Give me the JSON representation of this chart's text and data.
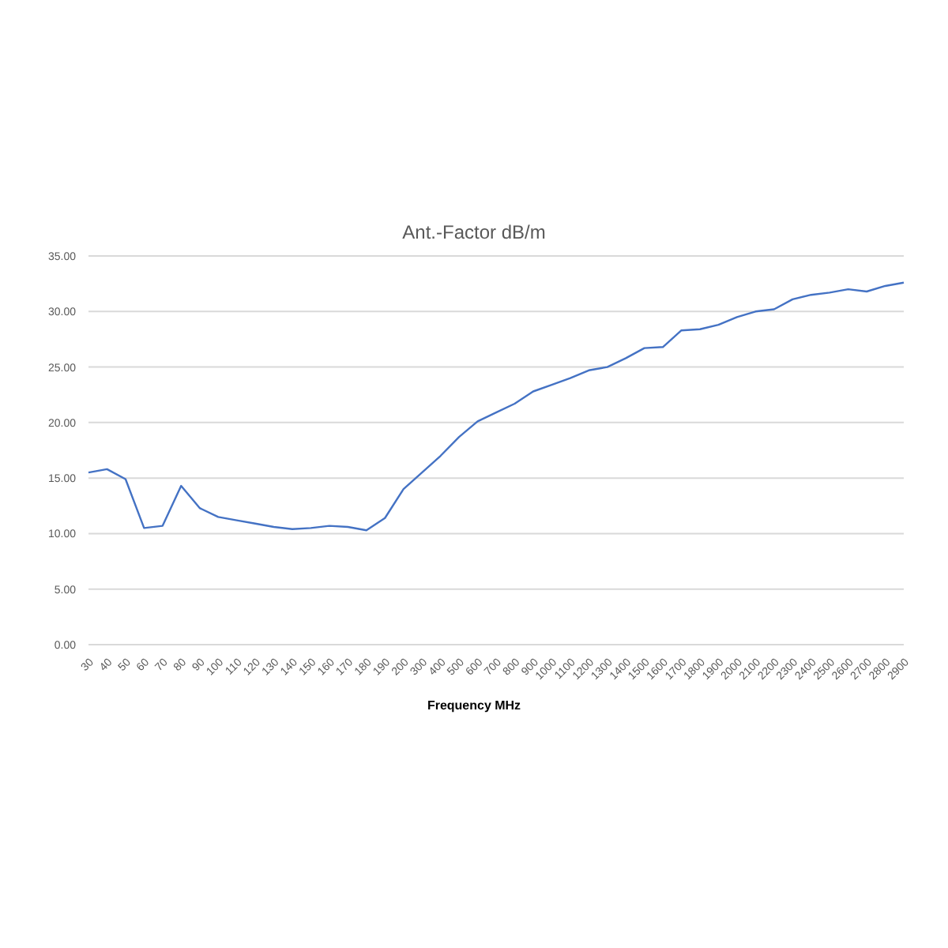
{
  "chart_data": {
    "type": "line",
    "title": "Ant.-Factor dB/m",
    "xlabel": "Frequency MHz",
    "categories": [
      "30",
      "40",
      "50",
      "60",
      "70",
      "80",
      "90",
      "100",
      "110",
      "120",
      "130",
      "140",
      "150",
      "160",
      "170",
      "180",
      "190",
      "200",
      "300",
      "400",
      "500",
      "600",
      "700",
      "800",
      "900",
      "1000",
      "1100",
      "1200",
      "1300",
      "1400",
      "1500",
      "1600",
      "1700",
      "1800",
      "1900",
      "2000",
      "2100",
      "2200",
      "2300",
      "2400",
      "2500",
      "2600",
      "2700",
      "2800",
      "2900"
    ],
    "series": [
      {
        "color": "#4472c4",
        "values": [
          15.5,
          15.8,
          14.9,
          10.5,
          10.7,
          14.3,
          12.3,
          11.5,
          11.2,
          10.9,
          10.6,
          10.4,
          10.5,
          10.7,
          10.6,
          10.3,
          11.4,
          14.0,
          15.5,
          17.0,
          18.7,
          20.1,
          20.9,
          21.7,
          22.8,
          23.4,
          24.0,
          24.7,
          25.0,
          25.8,
          26.7,
          26.8,
          28.3,
          28.4,
          28.8,
          29.5,
          30.0,
          30.2,
          31.1,
          31.5,
          31.7,
          32.0,
          31.8,
          32.3,
          32.6
        ]
      }
    ],
    "ylim": [
      0,
      35
    ],
    "yticks": [
      {
        "value": 0,
        "label": "0.00"
      },
      {
        "value": 5,
        "label": "5.00"
      },
      {
        "value": 10,
        "label": "10.00"
      },
      {
        "value": 15,
        "label": "15.00"
      },
      {
        "value": 20,
        "label": "20.00"
      },
      {
        "value": 25,
        "label": "25.00"
      },
      {
        "value": 30,
        "label": "30.00"
      },
      {
        "value": 35,
        "label": "35.00"
      }
    ],
    "grid": "y",
    "legend": false,
    "marker": "none",
    "line_style": "solid"
  }
}
